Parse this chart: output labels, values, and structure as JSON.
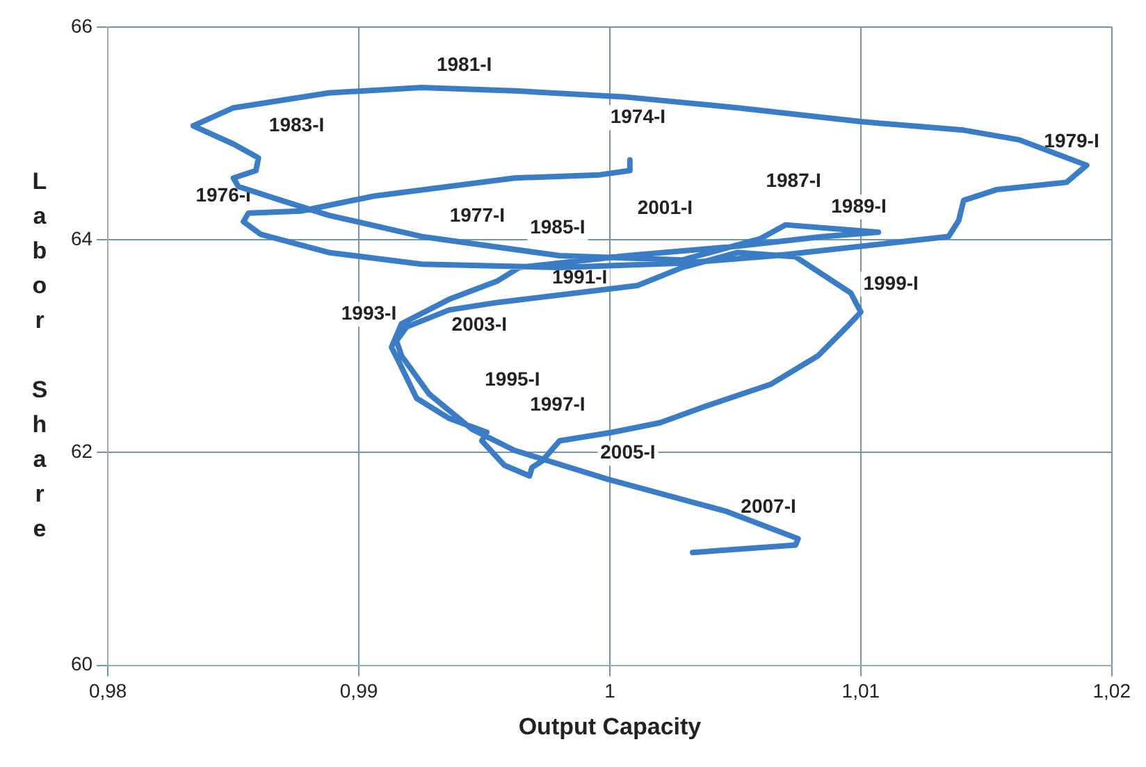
{
  "chart_data": {
    "type": "line",
    "xlabel": "Output Capacity",
    "ylabel": "Labor Share",
    "xlim": [
      0.98,
      1.02
    ],
    "xticks": [
      {
        "value": 0.98,
        "label": "0,98"
      },
      {
        "value": 0.99,
        "label": "0,99"
      },
      {
        "value": 1,
        "label": "1"
      },
      {
        "value": 1.01,
        "label": "1,01"
      },
      {
        "value": 1.02,
        "label": "1,02"
      }
    ],
    "ylim": [
      60,
      66
    ],
    "yticks": [
      60,
      62,
      64,
      66
    ],
    "grid": true,
    "legend": false,
    "marker": "none",
    "line_style": "solid",
    "series": [
      {
        "color": "#3a7dc5",
        "x": [
          1.0008,
          1.0008,
          0.9996,
          0.9962,
          0.9906,
          0.9877,
          0.9856,
          0.9854,
          0.9861,
          0.9888,
          0.9925,
          0.998,
          1.0029,
          1.0066,
          1.0135,
          1.0139,
          1.0141,
          1.0154,
          1.0182,
          1.019,
          1.0163,
          1.0141,
          1.01,
          1.0051,
          1.0007,
          0.9962,
          0.9925,
          0.9888,
          0.985,
          0.9834,
          0.985,
          0.986,
          0.9859,
          0.985,
          0.9852,
          0.9869,
          0.9888,
          0.9925,
          0.998,
          1.0029,
          1.006,
          1.007,
          1.0107,
          1.0085,
          1.0051,
          1.0007,
          0.9964,
          0.9955,
          0.9936,
          0.9917,
          0.9913,
          0.9916,
          0.9923,
          0.9936,
          0.9951,
          0.9949,
          0.9958,
          0.9968,
          0.9969,
          0.9973,
          0.998,
          1.0001,
          1.002,
          1.004,
          1.0064,
          1.0083,
          1.0094,
          1.01,
          1.0096,
          1.0074,
          1.0051,
          1.0029,
          1.0011,
          0.9955,
          0.9936,
          0.9919,
          0.9915,
          0.9917,
          0.9928,
          0.9945,
          0.9962,
          0.9999,
          1.0046,
          1.0075,
          1.0074,
          1.0033
        ],
        "values": [
          64.75,
          64.65,
          64.61,
          64.58,
          64.41,
          64.27,
          64.25,
          64.17,
          64.05,
          63.88,
          63.77,
          63.74,
          63.78,
          63.85,
          64.03,
          64.18,
          64.37,
          64.47,
          64.54,
          64.7,
          64.94,
          65.03,
          65.11,
          65.24,
          65.34,
          65.4,
          65.43,
          65.38,
          65.24,
          65.07,
          64.9,
          64.77,
          64.65,
          64.58,
          64.5,
          64.37,
          64.23,
          64.03,
          63.85,
          63.81,
          64.01,
          64.14,
          64.07,
          64.03,
          63.94,
          63.85,
          63.74,
          63.61,
          63.44,
          63.21,
          62.99,
          62.85,
          62.51,
          62.32,
          62.19,
          62.11,
          61.88,
          61.78,
          61.86,
          61.92,
          62.11,
          62.19,
          62.28,
          62.45,
          62.64,
          62.91,
          63.17,
          63.32,
          63.5,
          63.84,
          63.88,
          63.74,
          63.57,
          63.41,
          63.34,
          63.18,
          63.05,
          62.91,
          62.55,
          62.22,
          62.02,
          61.75,
          61.45,
          61.19,
          61.13,
          61.06
        ]
      }
    ],
    "annotations": [
      "1981-I",
      "1974-I",
      "1983-I",
      "1979-I",
      "1976-I",
      "1987-I",
      "2001-I",
      "1989-I",
      "1977-I",
      "1985-I",
      "1991-I",
      "1999-I",
      "1993-I",
      "2003-I",
      "1995-I",
      "1997-I",
      "2005-I",
      "2007-I"
    ]
  }
}
